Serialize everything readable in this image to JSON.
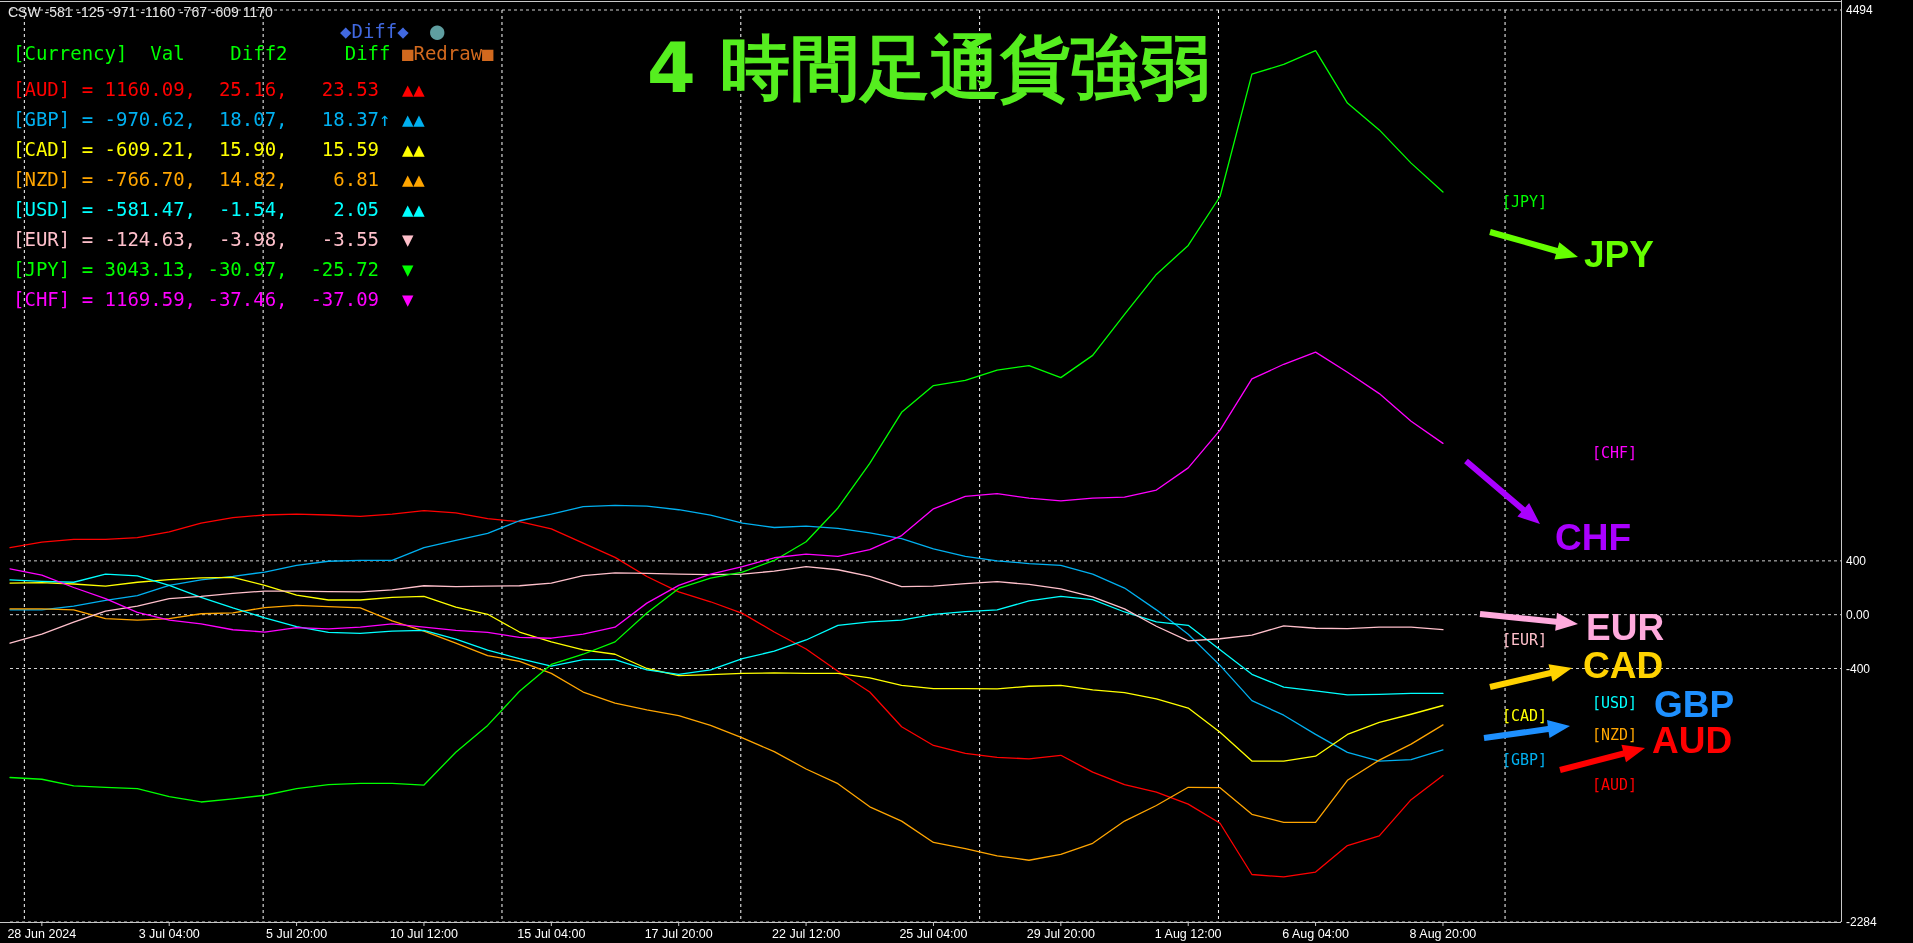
{
  "chart_data": {
    "type": "line",
    "title": "4 時間足通貨強弱",
    "categories": [
      null,
      "28 Jun 2024",
      null,
      null,
      null,
      "3 Jul 04:00",
      null,
      null,
      null,
      "5 Jul 20:00",
      null,
      null,
      null,
      "10 Jul 12:00",
      null,
      null,
      null,
      "15 Jul 04:00",
      null,
      null,
      null,
      "17 Jul 20:00",
      null,
      null,
      null,
      "22 Jul 12:00",
      null,
      null,
      null,
      "25 Jul 04:00",
      null,
      null,
      null,
      "29 Jul 20:00",
      null,
      null,
      null,
      "1 Aug 12:00",
      null,
      null,
      null,
      "6 Aug 04:00",
      null,
      null,
      null,
      "8 Aug 20:00",
      null,
      null,
      null,
      null,
      null,
      null,
      null,
      null,
      null,
      null,
      null,
      null
    ],
    "ylim": [
      -2284,
      4494
    ],
    "yticks": [
      -2284,
      -400,
      {
        "value": 0,
        "label": "0.00"
      },
      400,
      4494
    ],
    "grid": true,
    "series": [
      {
        "name": "[AUD]",
        "color": "#ff0000",
        "values": [
          499,
          539,
          559,
          559,
          572,
          615,
          681,
          721,
          741,
          747,
          741,
          731,
          747,
          774,
          757,
          714,
          691,
          638,
          532,
          426,
          284,
          169,
          96,
          10,
          -129,
          -255,
          -420,
          -575,
          -833,
          -972,
          -1031,
          -1061,
          -1071,
          -1045,
          -1170,
          -1263,
          -1319,
          -1408,
          -1550,
          -1931,
          -1949,
          -1913,
          -1716,
          -1644,
          -1375,
          -1195,
          null,
          null,
          null,
          null,
          null,
          null,
          null,
          null,
          null,
          null,
          null,
          null
        ]
      },
      {
        "name": "[GBP]",
        "color": "#00b0f0",
        "values": [
          36,
          36,
          63,
          106,
          142,
          218,
          258,
          284,
          317,
          367,
          397,
          403,
          403,
          499,
          552,
          605,
          698,
          747,
          803,
          813,
          807,
          780,
          740,
          681,
          648,
          658,
          641,
          608,
          565,
          489,
          433,
          400,
          380,
          367,
          301,
          198,
          36,
          -145,
          -377,
          -639,
          -747,
          -890,
          -1023,
          -1088,
          -1077,
          -1005,
          null,
          null,
          null,
          null,
          null,
          null,
          null,
          null,
          null,
          null,
          null,
          null
        ]
      },
      {
        "name": "[CAD]",
        "color": "#ffff00",
        "values": [
          235,
          238,
          228,
          212,
          241,
          261,
          274,
          278,
          218,
          145,
          109,
          109,
          129,
          136,
          56,
          3,
          -129,
          -202,
          -261,
          -294,
          -400,
          -453,
          -446,
          -436,
          -433,
          -436,
          -436,
          -469,
          -526,
          -549,
          -549,
          -552,
          -532,
          -526,
          -559,
          -579,
          -625,
          -694,
          -873,
          -1088,
          -1088,
          -1052,
          -890,
          -801,
          -740,
          -675,
          null,
          null,
          null,
          null,
          null,
          null,
          null,
          null,
          null,
          null,
          null,
          null
        ]
      },
      {
        "name": "[NZD]",
        "color": "#ffa500",
        "values": [
          43,
          43,
          36,
          -30,
          -40,
          -30,
          7,
          13,
          53,
          69,
          60,
          50,
          -46,
          -122,
          -212,
          -304,
          -347,
          -436,
          -575,
          -658,
          -707,
          -750,
          -823,
          -916,
          -1018,
          -1147,
          -1256,
          -1428,
          -1534,
          -1693,
          -1739,
          -1792,
          -1825,
          -1782,
          -1699,
          -1534,
          -1418,
          -1283,
          -1286,
          -1484,
          -1544,
          -1544,
          -1231,
          -1081,
          -962,
          -819,
          null,
          null,
          null,
          null,
          null,
          null,
          null,
          null,
          null,
          null,
          null,
          null
        ]
      },
      {
        "name": "[USD]",
        "color": "#00ffff",
        "values": [
          258,
          248,
          241,
          301,
          288,
          218,
          129,
          50,
          -23,
          -89,
          -132,
          -139,
          -122,
          -116,
          -182,
          -264,
          -327,
          -383,
          -334,
          -334,
          -410,
          -443,
          -410,
          -327,
          -271,
          -188,
          -79,
          -53,
          -40,
          3,
          23,
          36,
          102,
          136,
          112,
          20,
          -53,
          -79,
          -261,
          -443,
          -539,
          -567,
          -596,
          -592,
          -585,
          -585,
          null,
          null,
          null,
          null,
          null,
          null,
          null,
          null,
          null,
          null,
          null,
          null
        ]
      },
      {
        "name": "[EUR]",
        "color": "#ffc0cb",
        "values": [
          -212,
          -145,
          -56,
          26,
          63,
          119,
          136,
          159,
          175,
          175,
          172,
          169,
          185,
          215,
          208,
          212,
          215,
          235,
          291,
          311,
          307,
          301,
          298,
          301,
          324,
          357,
          334,
          284,
          208,
          212,
          231,
          245,
          225,
          192,
          132,
          43,
          -86,
          -195,
          -179,
          -152,
          -83,
          -101,
          -104,
          -93,
          -93,
          -111,
          null,
          null,
          null,
          null,
          null,
          null,
          null,
          null,
          null,
          null,
          null,
          null
        ]
      },
      {
        "name": "[JPY]",
        "color": "#00ff00",
        "values": [
          -1210,
          -1223,
          -1273,
          -1283,
          -1293,
          -1352,
          -1392,
          -1369,
          -1342,
          -1293,
          -1263,
          -1253,
          -1253,
          -1266,
          -1022,
          -823,
          -569,
          -370,
          -294,
          -202,
          13,
          195,
          271,
          317,
          403,
          542,
          793,
          1124,
          1504,
          1703,
          1742,
          1818,
          1851,
          1762,
          1927,
          2232,
          2529,
          2744,
          3108,
          4017,
          4090,
          4192,
          3802,
          3603,
          3356,
          3141,
          null,
          null,
          null,
          null,
          null,
          null,
          null,
          null,
          null,
          null,
          null,
          null
        ]
      },
      {
        "name": "[CHF]",
        "color": "#ff00ff",
        "values": [
          341,
          294,
          202,
          119,
          17,
          -40,
          -69,
          -112,
          -129,
          -96,
          -106,
          -93,
          -69,
          -93,
          -116,
          -132,
          -169,
          -175,
          -145,
          -93,
          86,
          218,
          301,
          357,
          423,
          450,
          433,
          483,
          588,
          787,
          879,
          899,
          866,
          846,
          866,
          873,
          926,
          1091,
          1372,
          1752,
          1861,
          1951,
          1802,
          1643,
          1438,
          1273,
          null,
          null,
          null,
          null,
          null,
          null,
          null,
          null,
          null,
          null,
          null,
          null
        ]
      }
    ],
    "annotations": [
      "CSW -581 -125 -971 -1160 -767 -609 1170",
      "◆Diff◆",
      "●",
      "■Redraw■",
      "[Currency]  Val    Diff2     Diff",
      "[AUD] = 1160.09,  25.16,   23.53  ▲▲",
      "[GBP] = -970.62,  18.07,   18.37↑ ▲▲",
      "[CAD] = -609.21,  15.90,   15.59  ▲▲",
      "[NZD] = -766.70,  14.82,    6.81  ▲▲",
      "[USD] = -581.47,  -1.54,    2.05  ▲▲",
      "[EUR] = -124.63,  -3.98,   -3.55  ▼",
      "[JPY] = 3043.13, -30.97,  -25.72  ▼",
      "[CHF] = 1169.59, -37.46,  -37.09  ▼",
      "JPY",
      "CHF",
      "EUR",
      "CAD",
      "GBP",
      "AUD"
    ]
  }
}
